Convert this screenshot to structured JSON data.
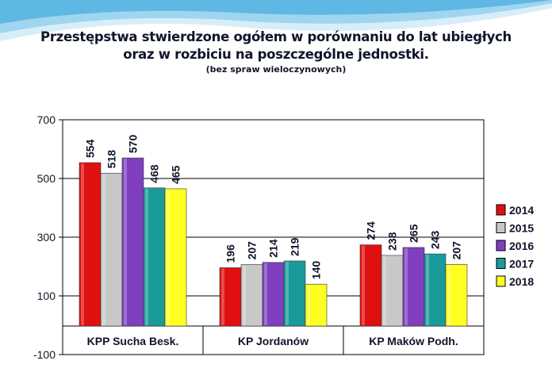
{
  "title_lines": [
    "Przestępstwa stwierdzone ogółem w porównaniu do lat ubiegłych",
    "oraz w rozbiciu na poszczególne jednostki."
  ],
  "subtitle": "(bez spraw wieloczynowych)",
  "colors": {
    "wave_light": "#d7eef9",
    "wave_mid": "#9fd5ef",
    "wave_dark": "#5fb7e3",
    "text": "#10162a",
    "grid": "#000000"
  },
  "chart_data": {
    "type": "bar",
    "categories": [
      "KPP Sucha Besk.",
      "KP Jordanów",
      "KP Maków Podh."
    ],
    "series": [
      {
        "name": "2014",
        "values": [
          554,
          196,
          274
        ],
        "color": "#e01010"
      },
      {
        "name": "2015",
        "values": [
          518,
          207,
          238
        ],
        "color": "#c8c8c8"
      },
      {
        "name": "2016",
        "values": [
          570,
          214,
          265
        ],
        "color": "#7f3fbf"
      },
      {
        "name": "2017",
        "values": [
          468,
          219,
          243
        ],
        "color": "#1b9a9a"
      },
      {
        "name": "2018",
        "values": [
          465,
          140,
          207
        ],
        "color": "#ffff22"
      }
    ],
    "ylim": [
      -100,
      700
    ],
    "yticks": [
      -100,
      100,
      300,
      500,
      700
    ],
    "ytick_labels": [
      "-100",
      "100",
      "300",
      "500",
      "700"
    ],
    "xlabel": "",
    "ylabel": "",
    "grid": true,
    "legend_position": "right",
    "data_labels": true
  }
}
